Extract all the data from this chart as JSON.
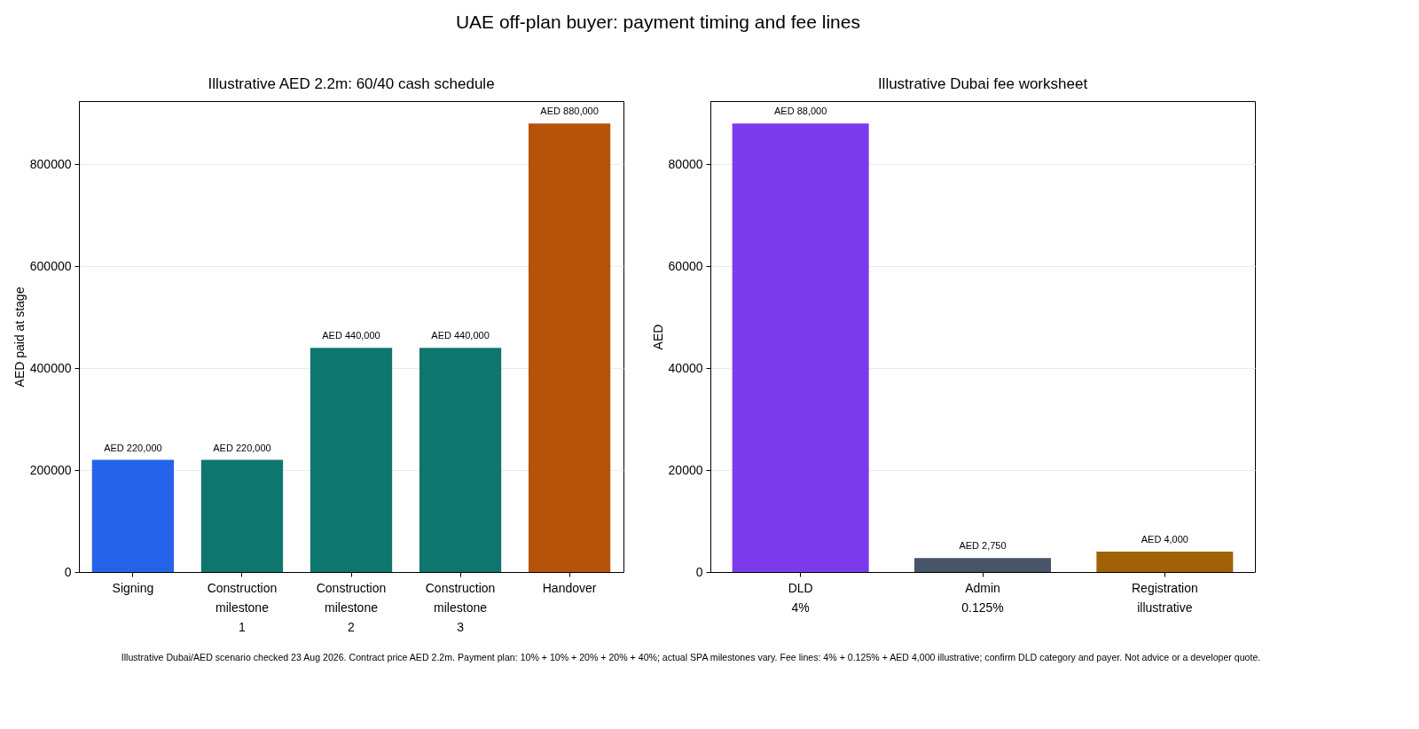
{
  "chart_data": [
    {
      "type": "other",
      "title": "UAE off-plan buyer: payment timing and fee lines",
      "annotations": [
        "Illustrative Dubai/AED scenario checked 23 Aug 2026. Contract price AED 2.2m. Payment plan: 10% + 10% + 20% + 20% + 40%; actual SPA milestones vary. Fee lines: 4% + 0.125% + AED 4,000 illustrative; confirm DLD category and payer. Not advice or a developer quote."
      ]
    },
    {
      "type": "bar",
      "title": "Illustrative AED 2.2m: 60/40 cash schedule",
      "ylabel": "AED paid at stage",
      "categories": [
        "Signing",
        "Construction\nmilestone\n1",
        "Construction\nmilestone\n2",
        "Construction\nmilestone\n3",
        "Handover"
      ],
      "values": [
        220000,
        220000,
        440000,
        440000,
        880000
      ],
      "colors": [
        "#2563eb",
        "#0f766e",
        "#0f766e",
        "#0f766e",
        "#b45309"
      ],
      "value_labels": [
        "AED 220,000",
        "AED 220,000",
        "AED 440,000",
        "AED 440,000",
        "AED 880,000"
      ],
      "ylim": [
        0,
        924000
      ],
      "yticks": [
        0,
        200000,
        400000,
        600000,
        800000
      ],
      "grid": "y",
      "legend": false
    },
    {
      "type": "bar",
      "title": "Illustrative Dubai fee worksheet",
      "ylabel": "AED",
      "categories": [
        "DLD\n4%",
        "Admin\n0.125%",
        "Registration\nillustrative"
      ],
      "values": [
        88000,
        2750,
        4000
      ],
      "colors": [
        "#7c3aed",
        "#475569",
        "#a16207"
      ],
      "value_labels": [
        "AED 88,000",
        "AED 2,750",
        "AED 4,000"
      ],
      "ylim": [
        0,
        92400
      ],
      "yticks": [
        0,
        20000,
        40000,
        60000,
        80000
      ],
      "grid": "y",
      "legend": false
    }
  ]
}
